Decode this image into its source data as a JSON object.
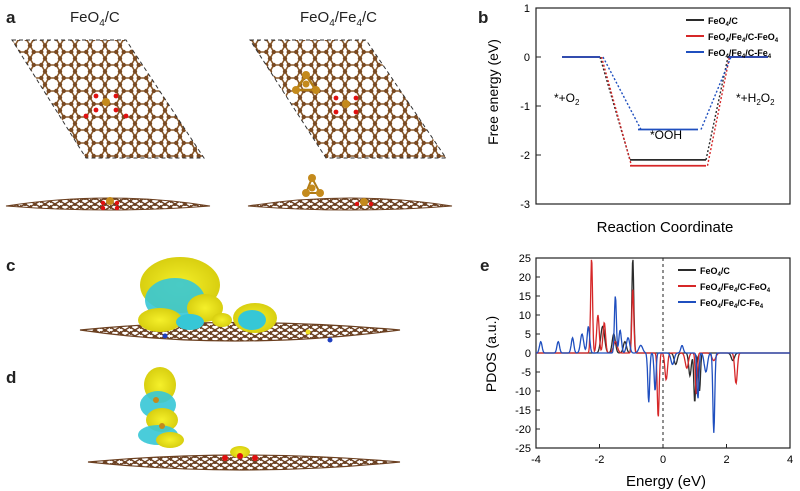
{
  "figure": {
    "panels": {
      "a": "a",
      "b": "b",
      "c": "c",
      "d": "d",
      "e": "e"
    },
    "structure_titles": {
      "left_base": "FeO",
      "left_sub": "4",
      "left_tail": "/C",
      "right_base": "FeO",
      "right_sub1": "4",
      "right_mid": "/Fe",
      "right_sub2": "4",
      "right_tail": "/C"
    }
  },
  "chart_data": [
    {
      "panel": "b",
      "type": "line",
      "ylabel": "Free energy (eV)",
      "xlabel": "Reaction Coordinate",
      "ylim": [
        -3,
        1
      ],
      "yticks": [
        -3,
        -2,
        -1,
        0,
        1
      ],
      "states": [
        "*+O2",
        "*OOH",
        "*+H2O2"
      ],
      "state_labels": {
        "o2_base": "*+O",
        "o2_sub": "2",
        "ooh": "*OOH",
        "h2o2_base": "*+H",
        "h2o2_sub1": "2",
        "h2o2_mid": "O",
        "h2o2_sub2": "2"
      },
      "legend_placement": "top-right",
      "series": [
        {
          "name": "FeO4/C",
          "color": "#2b2b2b",
          "values": [
            0,
            -2.1,
            0
          ],
          "legend": {
            "base": "FeO",
            "sub": "4",
            "tail": "/C"
          }
        },
        {
          "name": "FeO4/Fe4/C-FeO4",
          "color": "#d62728",
          "values": [
            0,
            -2.22,
            0
          ],
          "legend": {
            "base": "FeO",
            "sub1": "4",
            "mid": "/Fe",
            "sub2": "4",
            "mid2": "/C-FeO",
            "sub3": "4"
          }
        },
        {
          "name": "FeO4/Fe4/C-Fe4",
          "color": "#1f4fbf",
          "values": [
            0,
            -1.48,
            0
          ],
          "legend": {
            "base": "FeO",
            "sub1": "4",
            "mid": "/Fe",
            "sub2": "4",
            "mid2": "/C-Fe",
            "sub3": "4"
          }
        }
      ]
    },
    {
      "panel": "e",
      "type": "line",
      "ylabel": "PDOS (a.u.)",
      "xlabel": "Energy (eV)",
      "xlim": [
        -4,
        4
      ],
      "ylim": [
        -25,
        25
      ],
      "xticks": [
        -4,
        -2,
        0,
        2,
        4
      ],
      "yticks": [
        -25,
        -20,
        -15,
        -10,
        -5,
        0,
        5,
        10,
        15,
        20,
        25
      ],
      "fermi_level": 0,
      "legend_placement": "top-right",
      "series": [
        {
          "name": "FeO4/C",
          "color": "#2b2b2b",
          "legend": {
            "base": "FeO",
            "sub": "4",
            "tail": "/C"
          },
          "peaks": [
            [
              -0.95,
              25,
              0.03
            ],
            [
              -1.9,
              7,
              0.06
            ],
            [
              -1.55,
              5,
              0.05
            ],
            [
              -1.2,
              3,
              0.05
            ],
            [
              1.0,
              -13,
              0.03
            ],
            [
              1.15,
              -10,
              0.03
            ],
            [
              0.85,
              -6,
              0.04
            ],
            [
              0.4,
              -3,
              0.05
            ],
            [
              2.2,
              -2,
              0.05
            ]
          ]
        },
        {
          "name": "FeO4/Fe4/C-FeO4",
          "color": "#d62728",
          "legend": {
            "base": "FeO",
            "sub1": "4",
            "mid": "/Fe",
            "sub2": "4",
            "mid2": "/C-FeO",
            "sub3": "4"
          },
          "peaks": [
            [
              -2.25,
              25,
              0.03
            ],
            [
              -2.05,
              10,
              0.04
            ],
            [
              -1.85,
              8,
              0.04
            ],
            [
              -0.95,
              17,
              0.03
            ],
            [
              -1.5,
              3,
              0.06
            ],
            [
              -0.15,
              -17,
              0.03
            ],
            [
              0.1,
              -7,
              0.04
            ],
            [
              1.05,
              -11,
              0.03
            ],
            [
              0.75,
              -4,
              0.05
            ],
            [
              2.3,
              -8,
              0.04
            ],
            [
              1.6,
              -2,
              0.06
            ]
          ]
        },
        {
          "name": "FeO4/Fe4/C-Fe4",
          "color": "#1f4fbf",
          "legend": {
            "base": "FeO",
            "sub1": "4",
            "mid": "/Fe",
            "sub2": "4",
            "mid2": "/C-Fe",
            "sub3": "4"
          },
          "peaks": [
            [
              -3.85,
              3,
              0.04
            ],
            [
              -3.3,
              3,
              0.04
            ],
            [
              -2.85,
              4,
              0.04
            ],
            [
              -2.55,
              5,
              0.05
            ],
            [
              -2.35,
              7,
              0.04
            ],
            [
              -1.5,
              15,
              0.03
            ],
            [
              -1.35,
              6,
              0.04
            ],
            [
              -1.1,
              4,
              0.05
            ],
            [
              -0.7,
              2,
              0.06
            ],
            [
              -0.45,
              -13,
              0.03
            ],
            [
              -0.25,
              -10,
              0.03
            ],
            [
              0.6,
              2,
              0.04
            ],
            [
              1.1,
              -12,
              0.03
            ],
            [
              1.6,
              -21,
              0.03
            ],
            [
              1.35,
              -5,
              0.05
            ],
            [
              0.3,
              -3,
              0.05
            ]
          ]
        }
      ]
    }
  ]
}
